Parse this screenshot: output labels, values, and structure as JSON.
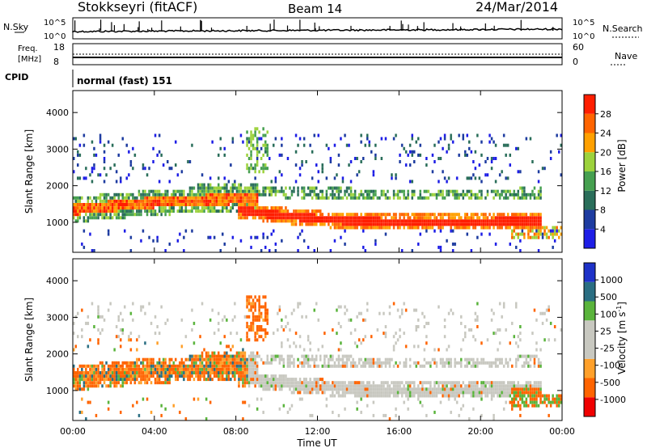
{
  "header": {
    "station": "Stokkseyri (fitACF)",
    "beam": "Beam 14",
    "date": "24/Mar/2014"
  },
  "strip_labels": {
    "nsky": "N.Sky",
    "nsky_ticks": [
      "10^5",
      "10^0"
    ],
    "nsearch": "N.Search",
    "freq_line1": "Freq.",
    "freq_line2": "[MHz]",
    "freq_ticks": [
      "18",
      "8"
    ],
    "nave": "Nave",
    "nave_ticks": [
      "60",
      "0"
    ],
    "cpid": "CPID",
    "cpid_value": "normal (fast) 151"
  },
  "colors": {
    "power": [
      "#1e1ee6",
      "#1e3ca0",
      "#2a6e5a",
      "#46a050",
      "#9cd23c",
      "#ffa000",
      "#ff6400",
      "#ff1e00"
    ],
    "velocity": [
      "#f00000",
      "#ff6400",
      "#ffa02a",
      "#c8c8c0",
      "#c8c8c0",
      "#5ab43c",
      "#2a6e82",
      "#1e32c8"
    ]
  },
  "chart_data": [
    {
      "type": "heatmap",
      "ylabel": "Slant Range [km]",
      "xlabel": "Time UT",
      "x_ticks": [
        "00:00",
        "04:00",
        "08:00",
        "12:00",
        "16:00",
        "20:00",
        "00:00"
      ],
      "y_ticks": [
        1000,
        2000,
        3000,
        4000
      ],
      "xlim": [
        0,
        24
      ],
      "ylim": [
        180,
        4600
      ],
      "colorbar_label": "Power [dB]",
      "colorbar_ticks": [
        "28",
        "24",
        "20",
        "16",
        "12",
        "8",
        "4"
      ],
      "features": [
        {
          "x": [
            0,
            2,
            4,
            6,
            8,
            9
          ],
          "y": [
            1300,
            1400,
            1500,
            1550,
            1600,
            1650
          ],
          "level": "high"
        },
        {
          "x": [
            8,
            10,
            12,
            14,
            16,
            18,
            20,
            22,
            23
          ],
          "y": [
            1300,
            1150,
            1050,
            980,
            960,
            950,
            960,
            990,
            1000
          ],
          "level": "very-high"
        },
        {
          "x": [
            6,
            9,
            12,
            16,
            20,
            23
          ],
          "y": [
            1900,
            1800,
            1750,
            1700,
            1700,
            1750
          ],
          "level": "low-mid"
        }
      ]
    },
    {
      "type": "heatmap",
      "ylabel": "Slant Range [km]",
      "xlabel": "Time UT",
      "x_ticks": [
        "00:00",
        "04:00",
        "08:00",
        "12:00",
        "16:00",
        "20:00",
        "00:00"
      ],
      "y_ticks": [
        1000,
        2000,
        3000,
        4000
      ],
      "xlim": [
        0,
        24
      ],
      "ylim": [
        180,
        4600
      ],
      "colorbar_label": "Velocity [m s^-1]",
      "colorbar_ticks": [
        "1000",
        "500",
        "100",
        "25",
        "-25",
        "-100",
        "-500",
        "-1000"
      ]
    }
  ]
}
